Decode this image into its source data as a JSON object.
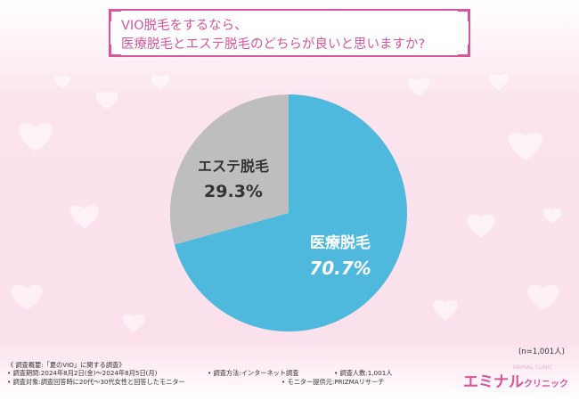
{
  "question": {
    "line1": "VIO脱毛をするなら、",
    "line2": "医療脱毛とエステ脱毛のどちらが良いと思いますか?"
  },
  "chart_data": {
    "type": "pie",
    "title": "VIO脱毛をするなら、医療脱毛とエステ脱毛のどちらが良いと思いますか?",
    "slices": [
      {
        "label": "医療脱毛",
        "value": 70.7,
        "display": "70.7%",
        "color": "#4fb8dd"
      },
      {
        "label": "エステ脱毛",
        "value": 29.3,
        "display": "29.3%",
        "color": "#bebebe"
      }
    ],
    "sample_note": "(n=1,001人)"
  },
  "footer": {
    "summary": "《 調査概要:「夏のVIO」に関する調査》",
    "period": "• 調査期間:2024年8月2日(金)〜2024年8月5日(月)",
    "method": "• 調査方法:インターネット調査",
    "count": "• 調査人数:1,001人",
    "target": "• 調査対象:調査回答時に20代〜30代女性と回答したモニター",
    "provider": "• モニター提供元:PRIZMAリサーチ"
  },
  "brand": {
    "name_main": "エミナル",
    "name_sub": "クリニック",
    "name_small": "EMINAL CLINIC",
    "color": "#d9559b"
  },
  "colors": {
    "accent": "#d9559b",
    "background": "#fde7f0"
  }
}
